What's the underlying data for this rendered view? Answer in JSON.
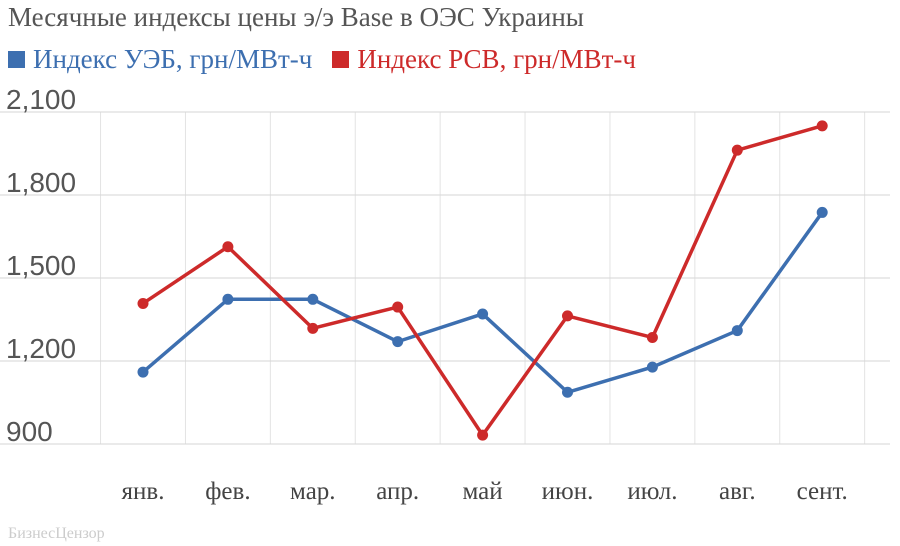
{
  "chart_data": {
    "type": "line",
    "title": "Месячные индексы цены э/э Base в ОЭС Украины",
    "categories": [
      "янв.",
      "фев.",
      "мар.",
      "апр.",
      "май",
      "июн.",
      "июл.",
      "авг.",
      "сент."
    ],
    "series": [
      {
        "name": "Индекс УЭБ, грн/МВт-ч",
        "color": "#3d6fb0",
        "values": [
          1160,
          1423,
          1423,
          1270,
          1370,
          1087,
          1178,
          1310,
          1737
        ]
      },
      {
        "name": "Индекс РСВ, грн/МВт-ч",
        "color": "#cd2a2a",
        "values": [
          1408,
          1613,
          1318,
          1395,
          932,
          1363,
          1285,
          1962,
          2050
        ]
      }
    ],
    "yticks": [
      "2,100",
      "1,800",
      "1,500",
      "1,200",
      "900"
    ],
    "ytick_values": [
      2100,
      1800,
      1500,
      1200,
      900
    ],
    "ylim": [
      900,
      2100
    ],
    "grid": true,
    "legend_position": "top-left",
    "source": "БизнесЦензор"
  }
}
